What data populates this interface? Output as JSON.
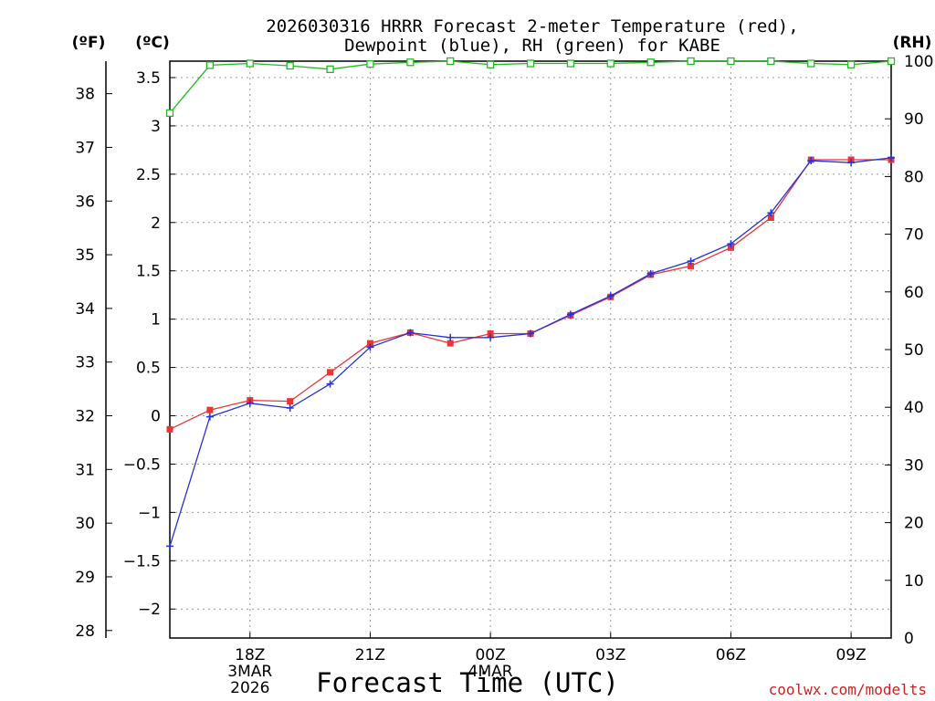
{
  "chart_data": {
    "type": "line",
    "title_line1": "2026030316 HRRR Forecast 2-meter Temperature (red),",
    "title_line2": "Dewpoint (blue), RH (green) for KABE",
    "xlabel": "Forecast Time (UTC)",
    "credit": "coolwx.com/modelts",
    "units": {
      "f": "(ºF)",
      "c": "(ºC)",
      "rh": "(RH)"
    },
    "x_hours": [
      16,
      17,
      18,
      19,
      20,
      21,
      22,
      23,
      24,
      25,
      26,
      27,
      28,
      29,
      30,
      31,
      32,
      33,
      34
    ],
    "xlim": [
      16,
      34
    ],
    "x_ticks": [
      {
        "hour": 18,
        "lines": [
          "18Z",
          "3MAR",
          "2026"
        ]
      },
      {
        "hour": 21,
        "lines": [
          "21Z"
        ]
      },
      {
        "hour": 24,
        "lines": [
          "00Z",
          "4MAR"
        ]
      },
      {
        "hour": 27,
        "lines": [
          "03Z"
        ]
      },
      {
        "hour": 30,
        "lines": [
          "06Z"
        ]
      },
      {
        "hour": 33,
        "lines": [
          "09Z"
        ]
      }
    ],
    "ylim_c": [
      -2.3,
      3.67
    ],
    "ylim_rh": [
      0,
      100
    ],
    "yticks_c": [
      "−2",
      "−1.5",
      "−1",
      "−0.5",
      "0",
      "0.5",
      "1",
      "1.5",
      "2",
      "2.5",
      "3",
      "3.5"
    ],
    "yticks_c_values": [
      -2,
      -1.5,
      -1,
      -0.5,
      0,
      0.5,
      1,
      1.5,
      2,
      2.5,
      3,
      3.5
    ],
    "yticks_f": [
      "28",
      "29",
      "30",
      "31",
      "32",
      "33",
      "34",
      "35",
      "36",
      "37",
      "38"
    ],
    "yticks_f_values": [
      28,
      29,
      30,
      31,
      32,
      33,
      34,
      35,
      36,
      37,
      38
    ],
    "yticks_rh": [
      "0",
      "10",
      "20",
      "30",
      "40",
      "50",
      "60",
      "70",
      "80",
      "90",
      "100"
    ],
    "yticks_rh_values": [
      0,
      10,
      20,
      30,
      40,
      50,
      60,
      70,
      80,
      90,
      100
    ],
    "series": [
      {
        "name": "Temperature",
        "color": "#ee3333",
        "axis": "c",
        "values": [
          -0.14,
          0.06,
          0.16,
          0.15,
          0.45,
          0.75,
          0.86,
          0.75,
          0.85,
          0.85,
          1.04,
          1.23,
          1.46,
          1.55,
          1.74,
          2.05,
          2.65,
          2.65,
          2.65
        ]
      },
      {
        "name": "Dewpoint",
        "color": "#2233dd",
        "axis": "c",
        "values": [
          -1.35,
          -0.01,
          0.13,
          0.08,
          0.33,
          0.71,
          0.86,
          0.81,
          0.81,
          0.85,
          1.05,
          1.24,
          1.47,
          1.6,
          1.78,
          2.1,
          2.64,
          2.62,
          2.67
        ]
      },
      {
        "name": "RH",
        "color": "#22bb22",
        "axis": "rh",
        "values": [
          91,
          99.3,
          99.6,
          99.2,
          98.6,
          99.5,
          99.8,
          100,
          99.4,
          99.6,
          99.6,
          99.6,
          99.8,
          100,
          100,
          100,
          99.6,
          99.4,
          100
        ]
      }
    ]
  }
}
